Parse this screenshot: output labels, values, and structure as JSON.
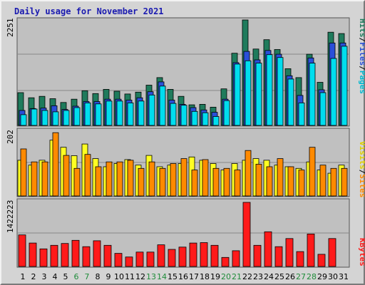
{
  "title": "Daily usage for November 2021",
  "colors": {
    "hits": "#1f7b5c",
    "files": "#2a4fd8",
    "pages": "#00ddee",
    "visits": "#ffff22",
    "sites": "#ff8a00",
    "kbytes": "#ff1a1a",
    "panel": "#c0c0c0",
    "weekend_label": "#1f8c3a",
    "weekday_label": "#000000"
  },
  "chart_data": [
    {
      "type": "bar",
      "panel": "hits-files-pages",
      "ymax_label": "2251",
      "ylim": [
        0,
        2251
      ],
      "axis_labels_right": [
        "Pages",
        "Files",
        "Hits"
      ],
      "categories": [
        "1",
        "2",
        "3",
        "4",
        "5",
        "6",
        "7",
        "8",
        "9",
        "10",
        "11",
        "12",
        "13",
        "14",
        "15",
        "16",
        "17",
        "18",
        "19",
        "20",
        "21",
        "22",
        "23",
        "24",
        "25",
        "26",
        "27",
        "28",
        "29",
        "30",
        "31"
      ],
      "weekend_days": [
        "6",
        "7",
        "13",
        "14",
        "20",
        "21",
        "27",
        "28"
      ],
      "series": [
        {
          "name": "Hits",
          "values": [
            700,
            590,
            620,
            570,
            490,
            560,
            740,
            680,
            770,
            730,
            670,
            710,
            860,
            1020,
            770,
            620,
            440,
            450,
            390,
            780,
            1540,
            2251,
            1630,
            1830,
            1620,
            1210,
            1020,
            1520,
            920,
            1990,
            1960
          ]
        },
        {
          "name": "Files",
          "values": [
            320,
            360,
            370,
            420,
            340,
            410,
            510,
            510,
            560,
            560,
            540,
            590,
            720,
            930,
            540,
            450,
            380,
            330,
            280,
            560,
            1340,
            1580,
            1400,
            1600,
            1520,
            1060,
            640,
            1440,
            760,
            1760,
            1760
          ]
        },
        {
          "name": "Pages",
          "values": [
            230,
            350,
            320,
            290,
            320,
            380,
            480,
            460,
            520,
            520,
            480,
            520,
            650,
            840,
            470,
            430,
            300,
            270,
            190,
            530,
            1310,
            1380,
            1330,
            1510,
            1450,
            990,
            480,
            1330,
            700,
            1430,
            1690
          ]
        }
      ]
    },
    {
      "type": "bar",
      "panel": "visits-sites",
      "ymax_label": "202",
      "ylim": [
        0,
        202
      ],
      "axis_labels_right": [
        "Sites",
        "Visits"
      ],
      "categories": [
        "1",
        "2",
        "3",
        "4",
        "5",
        "6",
        "7",
        "8",
        "9",
        "10",
        "11",
        "12",
        "13",
        "14",
        "15",
        "16",
        "17",
        "18",
        "19",
        "20",
        "21",
        "22",
        "23",
        "24",
        "25",
        "26",
        "27",
        "28",
        "29",
        "30",
        "31"
      ],
      "series": [
        {
          "name": "Visits",
          "values": [
            110,
            95,
            110,
            172,
            150,
            124,
            160,
            115,
            90,
            100,
            112,
            95,
            125,
            90,
            95,
            100,
            120,
            110,
            100,
            80,
            100,
            110,
            115,
            110,
            95,
            90,
            85,
            105,
            80,
            70,
            95
          ]
        },
        {
          "name": "Sites",
          "values": [
            145,
            105,
            105,
            195,
            125,
            85,
            128,
            90,
            105,
            105,
            110,
            85,
            105,
            85,
            100,
            115,
            80,
            112,
            85,
            85,
            80,
            140,
            98,
            90,
            115,
            90,
            80,
            150,
            95,
            85,
            85
          ]
        }
      ]
    },
    {
      "type": "bar",
      "panel": "kbytes",
      "ymax_label": "1422223",
      "ylim": [
        0,
        1422223
      ],
      "axis_labels_right": [
        "KBytes"
      ],
      "categories": [
        "1",
        "2",
        "3",
        "4",
        "5",
        "6",
        "7",
        "8",
        "9",
        "10",
        "11",
        "12",
        "13",
        "14",
        "15",
        "16",
        "17",
        "18",
        "19",
        "20",
        "21",
        "22",
        "23",
        "24",
        "25",
        "26",
        "27",
        "28",
        "29",
        "30",
        "31"
      ],
      "values": [
        700000,
        520000,
        390000,
        470000,
        510000,
        580000,
        440000,
        570000,
        470000,
        290000,
        210000,
        320000,
        320000,
        480000,
        380000,
        430000,
        520000,
        530000,
        470000,
        200000,
        350000,
        1422223,
        470000,
        770000,
        440000,
        620000,
        330000,
        720000,
        270000,
        620000,
        0
      ]
    }
  ]
}
